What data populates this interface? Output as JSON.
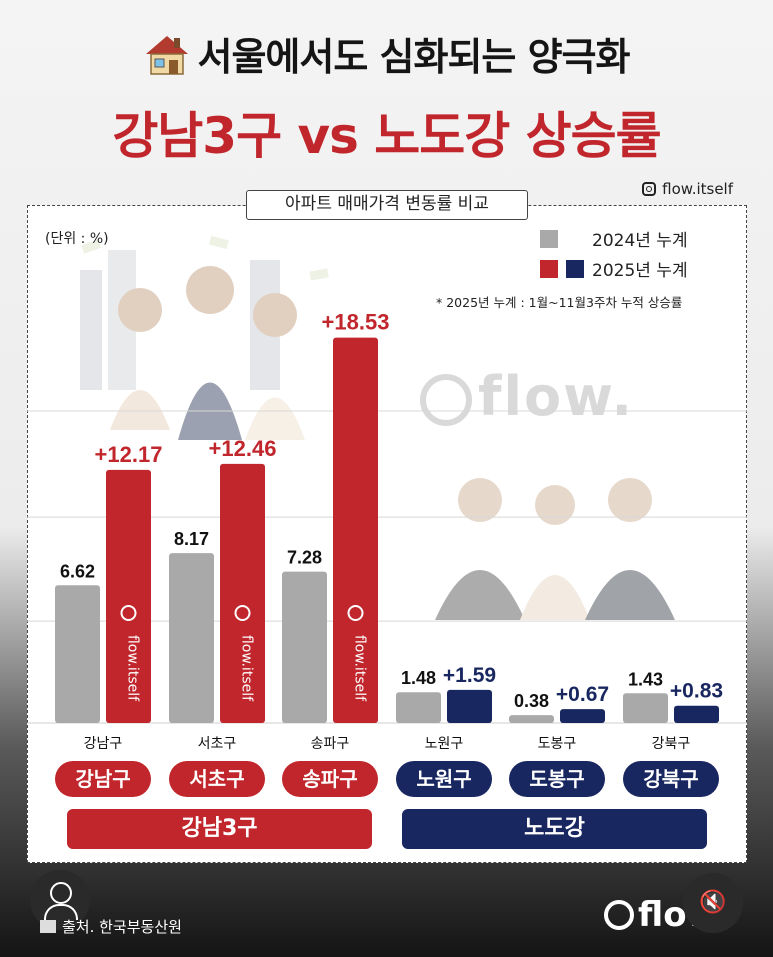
{
  "header": {
    "title_line1": "서울에서도 심화되는 양극화",
    "title_line2": "강남3구 vs 노도강 상승률",
    "credit": "flow.itself"
  },
  "panel": {
    "label": "아파트 매매가격 변동률 비교",
    "unit": "(단위 : %)",
    "note": "* 2025년 누계 :  1월~11월3주차 누적 상승률"
  },
  "legend": {
    "y2024": "2024년 누계",
    "y2025": "2025년 누계"
  },
  "watermark": "flow.",
  "bar_watermark": "flow.itself",
  "chart_data": {
    "type": "bar",
    "categories": [
      "강남구",
      "서초구",
      "송파구",
      "노원구",
      "도봉구",
      "강북구"
    ],
    "series": [
      {
        "name": "2024년 누계",
        "values": [
          6.62,
          8.17,
          7.28,
          1.48,
          0.38,
          1.43
        ],
        "labels": [
          "6.62",
          "8.17",
          "7.28",
          "1.48",
          "0.38",
          "1.43"
        ]
      },
      {
        "name": "2025년 누계",
        "values": [
          12.17,
          12.46,
          18.53,
          1.59,
          0.67,
          0.83
        ],
        "labels": [
          "+12.17",
          "+12.46",
          "+18.53",
          "+1.59",
          "+0.67",
          "+0.83"
        ]
      }
    ],
    "groups": [
      {
        "name": "강남3구",
        "members": [
          "강남구",
          "서초구",
          "송파구"
        ]
      },
      {
        "name": "노도강",
        "members": [
          "노원구",
          "도봉구",
          "강북구"
        ]
      }
    ],
    "ylim": [
      0,
      20
    ],
    "grid": true,
    "colors": {
      "y2024": "#a9a9a9",
      "y2025_gangnam": "#c0262c",
      "y2025_nodogang": "#18275f"
    }
  },
  "footer": {
    "source": "출처. 한국부동산원",
    "brand": "flow."
  }
}
